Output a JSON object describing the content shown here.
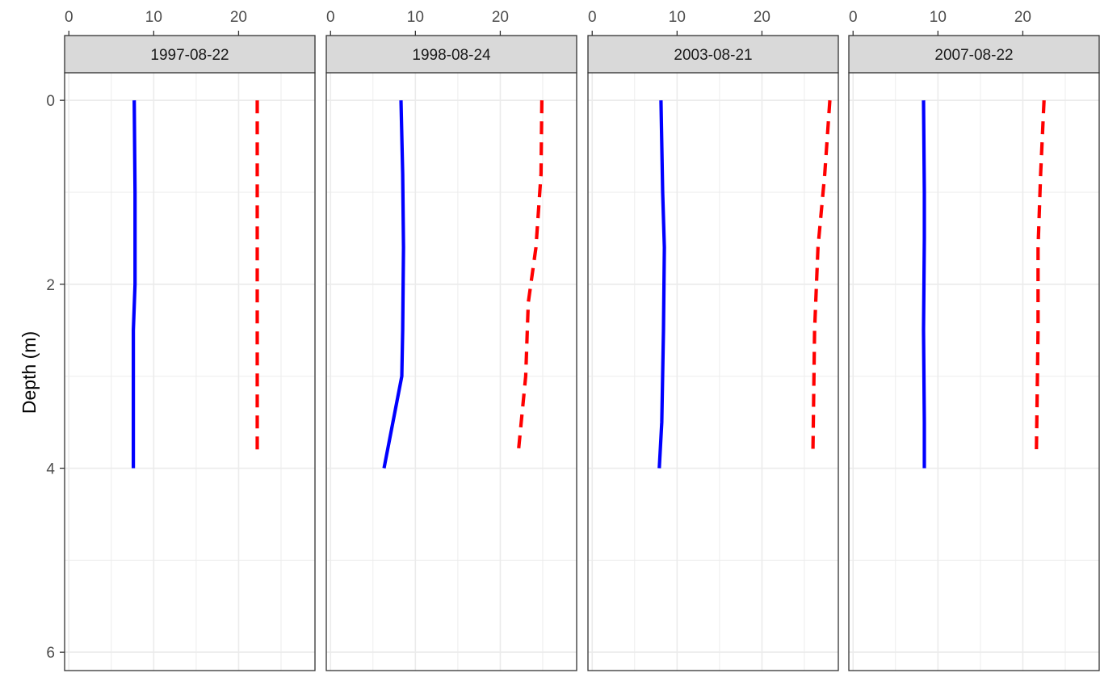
{
  "chart_data": {
    "type": "line",
    "facet_layout": "4 panels side by side, shared axes",
    "ylabel": "Depth (m)",
    "xlabel": "",
    "y_reversed": true,
    "xlim": [
      -0.5,
      29
    ],
    "ylim": [
      6.2,
      -0.3
    ],
    "x_ticks": [
      "0",
      "10",
      "20"
    ],
    "x_tick_values": [
      0,
      10,
      20
    ],
    "x_axis_position": "top",
    "y_ticks": [
      "0",
      "2",
      "4",
      "6"
    ],
    "y_tick_values": [
      0,
      2,
      4,
      6
    ],
    "grid": true,
    "legend": "none",
    "colors": {
      "series_solid": "#0000ff",
      "series_dashed": "#ff0000",
      "strip_fill": "#d9d9d9",
      "grid": "#ebebeb",
      "border": "#333333"
    },
    "panels": [
      {
        "title": "1997-08-22",
        "series": [
          {
            "style": "solid",
            "color": "#0000ff",
            "x": [
              7.7,
              7.8,
              7.8,
              7.6,
              7.6
            ],
            "y": [
              0,
              1,
              2,
              2.5,
              4
            ]
          },
          {
            "style": "dashed",
            "color": "#ff0000",
            "x": [
              22.2,
              22.2,
              22.2,
              22.2
            ],
            "y": [
              0,
              1,
              2,
              3.85
            ]
          }
        ]
      },
      {
        "title": "1998-08-24",
        "series": [
          {
            "style": "solid",
            "color": "#0000ff",
            "x": [
              8.3,
              8.5,
              8.6,
              8.5,
              8.4,
              6.3
            ],
            "y": [
              0,
              0.8,
              1.6,
              2.5,
              3.0,
              4.0
            ]
          },
          {
            "style": "dashed",
            "color": "#ff0000",
            "x": [
              24.9,
              24.8,
              24.2,
              23.3,
              23.0,
              22.1
            ],
            "y": [
              0,
              0.8,
              1.6,
              2.2,
              3.0,
              3.85
            ]
          }
        ]
      },
      {
        "title": "2003-08-21",
        "series": [
          {
            "style": "solid",
            "color": "#0000ff",
            "x": [
              8.1,
              8.3,
              8.5,
              8.4,
              8.2,
              7.9
            ],
            "y": [
              0,
              1.0,
              1.6,
              2.5,
              3.5,
              4.0
            ]
          },
          {
            "style": "dashed",
            "color": "#ff0000",
            "x": [
              28.0,
              27.4,
              26.6,
              26.2,
              26.0
            ],
            "y": [
              0,
              0.8,
              1.6,
              2.5,
              3.85
            ]
          }
        ]
      },
      {
        "title": "2007-08-22",
        "series": [
          {
            "style": "solid",
            "color": "#0000ff",
            "x": [
              8.3,
              8.4,
              8.4,
              8.3,
              8.4,
              8.4
            ],
            "y": [
              0,
              1.0,
              1.5,
              2.5,
              3.5,
              4.0
            ]
          },
          {
            "style": "dashed",
            "color": "#ff0000",
            "x": [
              22.5,
              22.1,
              21.8,
              21.8,
              21.6
            ],
            "y": [
              0,
              0.8,
              1.6,
              2.5,
              3.85
            ]
          }
        ]
      }
    ]
  }
}
